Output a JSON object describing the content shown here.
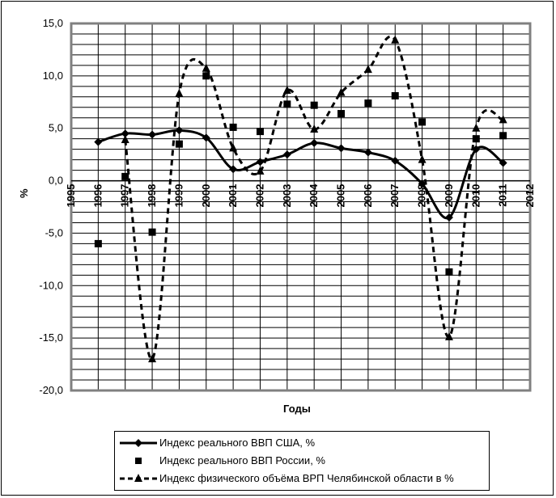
{
  "chart_data": {
    "type": "line",
    "title": "",
    "xlabel": "Годы",
    "ylabel": "%",
    "xlim": [
      1995,
      2012
    ],
    "ylim": [
      -20,
      15
    ],
    "y_ticks": [
      "15,0",
      "10,0",
      "5,0",
      "0,0",
      "-5,0",
      "-10,0",
      "-15,0",
      "-20,0"
    ],
    "y_tick_values": [
      15,
      10,
      5,
      0,
      -5,
      -10,
      -15,
      -20
    ],
    "x_ticks": [
      "1995",
      "1996",
      "1997",
      "1998",
      "1999",
      "2000",
      "2001",
      "2002",
      "2003",
      "2004",
      "2005",
      "2006",
      "2007",
      "2008",
      "2009",
      "2010",
      "2011",
      "2012"
    ],
    "grid": true,
    "legend_position": "bottom",
    "series": [
      {
        "name": "Индекс реального ВВП США, %",
        "style": "solid line with diamond markers",
        "x": [
          1996,
          1997,
          1998,
          1999,
          2000,
          2001,
          2002,
          2003,
          2004,
          2005,
          2006,
          2007,
          2008,
          2009,
          2010,
          2011
        ],
        "values": [
          3.7,
          4.5,
          4.4,
          4.8,
          4.1,
          1.1,
          1.8,
          2.5,
          3.6,
          3.1,
          2.7,
          1.9,
          -0.3,
          -3.5,
          3.0,
          1.7
        ]
      },
      {
        "name": "Индекс реального ВВП России, %",
        "style": "square markers only",
        "x": [
          1996,
          1997,
          1998,
          1999,
          2000,
          2001,
          2002,
          2003,
          2004,
          2005,
          2006,
          2007,
          2008,
          2009,
          2010,
          2011
        ],
        "values": [
          -6.0,
          0.4,
          -4.9,
          3.5,
          10.0,
          5.1,
          4.7,
          7.3,
          7.2,
          6.4,
          7.4,
          8.1,
          5.6,
          -8.7,
          4.0,
          4.3
        ]
      },
      {
        "name": "Индекс физического объёма ВРП Челябинской области в %",
        "style": "dashed line with triangle markers",
        "x": [
          1997,
          1998,
          1999,
          2000,
          2001,
          2002,
          2003,
          2004,
          2005,
          2006,
          2007,
          2008,
          2009,
          2010,
          2011
        ],
        "values": [
          3.9,
          -17.0,
          8.3,
          10.7,
          3.1,
          0.9,
          8.6,
          4.9,
          8.4,
          10.6,
          13.4,
          2.0,
          -14.9,
          5.0,
          5.8
        ]
      }
    ]
  }
}
